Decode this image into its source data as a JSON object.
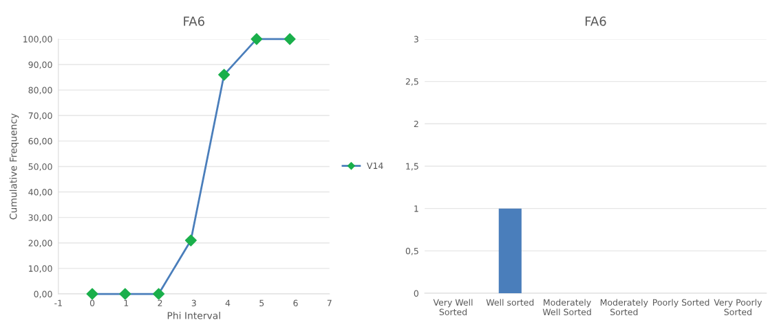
{
  "chart_data": [
    {
      "type": "line",
      "title": "FA6",
      "xlabel": "Phi Interval",
      "ylabel": "Cumulative Frequency",
      "series": [
        {
          "name": "V14",
          "color": "#4a7ebb",
          "x": [
            0,
            0.97,
            1.96,
            2.91,
            3.89,
            4.85,
            5.83
          ],
          "values": [
            0,
            0,
            0,
            21,
            86,
            100,
            100
          ],
          "colors": [
            "#1aaf4b",
            "#1aaf4b",
            "#1aaf4b",
            "#1aaf4b",
            "#1aaf4b",
            "#1aaf4b",
            "#1aaf4b"
          ]
        }
      ],
      "marker": "diamond",
      "line_style": "solid",
      "xlim": [
        -1,
        7
      ],
      "xticks": [
        -1,
        0,
        1,
        2,
        3,
        4,
        5,
        6,
        7
      ],
      "ylim": [
        0,
        100
      ],
      "yticks": [
        {
          "value": 0,
          "label": "0,00"
        },
        {
          "value": 10,
          "label": "10,00"
        },
        {
          "value": 20,
          "label": "20,00"
        },
        {
          "value": 30,
          "label": "30,00"
        },
        {
          "value": 40,
          "label": "40,00"
        },
        {
          "value": 50,
          "label": "50,00"
        },
        {
          "value": 60,
          "label": "60,00"
        },
        {
          "value": 70,
          "label": "70,00"
        },
        {
          "value": 80,
          "label": "80,00"
        },
        {
          "value": 90,
          "label": "90,00"
        },
        {
          "value": 100,
          "label": "100,00"
        }
      ],
      "grid": "y",
      "legend": "right"
    },
    {
      "type": "bar",
      "title": "FA6",
      "categories": [
        "Very Well\nSorted",
        "Well sorted",
        "Moderately\nWell Sorted",
        "Moderately\nSorted",
        "Poorly Sorted",
        "Very Poorly\nSorted"
      ],
      "values": [
        0,
        1,
        0,
        0,
        0,
        0
      ],
      "color": "#4a7ebb",
      "ylim": [
        0,
        3
      ],
      "yticks": [
        0,
        {
          "value": 0.5,
          "label": "0,5"
        },
        1,
        {
          "value": 1.5,
          "label": "1,5"
        },
        2,
        {
          "value": 2.5,
          "label": "2,5"
        },
        3
      ],
      "grid": "y"
    }
  ]
}
